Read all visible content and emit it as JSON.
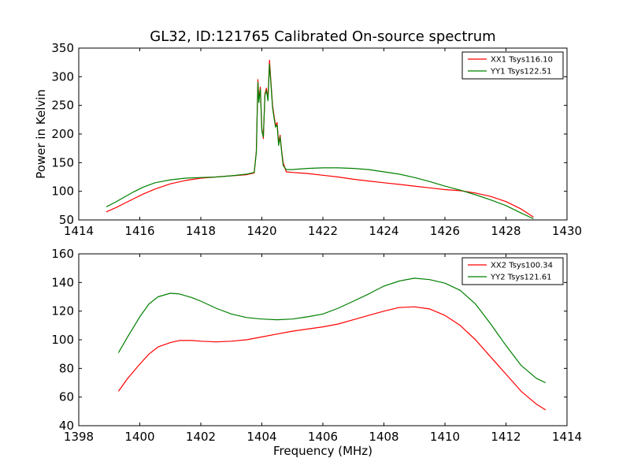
{
  "figure": {
    "title": "GL32, ID:121765 Calibrated On-source spectrum"
  },
  "chart_data": [
    {
      "type": "line",
      "title": "GL32, ID:121765 Calibrated On-source spectrum",
      "xlabel": "",
      "ylabel": "Power in Kelvin",
      "xlim": [
        1414,
        1430
      ],
      "ylim": [
        50,
        350
      ],
      "xticks": [
        1414,
        1416,
        1418,
        1420,
        1422,
        1424,
        1426,
        1428,
        1430
      ],
      "yticks": [
        50,
        100,
        150,
        200,
        250,
        300,
        350
      ],
      "grid": false,
      "legend": "top-right",
      "series": [
        {
          "name": "XX1 Tsys116.10",
          "color": "#ff0000",
          "x": [
            1414.9,
            1415.2,
            1415.5,
            1415.8,
            1416.1,
            1416.5,
            1417.0,
            1417.5,
            1418.0,
            1418.5,
            1419.0,
            1419.5,
            1419.75,
            1419.82,
            1419.87,
            1419.9,
            1419.95,
            1420.0,
            1420.05,
            1420.1,
            1420.15,
            1420.2,
            1420.25,
            1420.3,
            1420.35,
            1420.4,
            1420.45,
            1420.5,
            1420.55,
            1420.6,
            1420.65,
            1420.7,
            1420.8,
            1421.0,
            1421.5,
            1422.0,
            1422.5,
            1423.0,
            1423.5,
            1424.0,
            1424.5,
            1425.0,
            1425.5,
            1426.0,
            1426.5,
            1427.0,
            1427.5,
            1428.0,
            1428.5,
            1428.9
          ],
          "y": [
            64,
            71,
            79,
            87,
            95,
            104,
            113,
            119,
            123,
            125,
            127,
            129,
            132,
            170,
            295,
            260,
            282,
            210,
            192,
            270,
            280,
            262,
            329,
            290,
            250,
            232,
            215,
            220,
            185,
            198,
            170,
            150,
            134,
            133,
            131,
            128,
            125,
            121,
            118,
            115,
            112,
            109,
            106,
            103,
            101,
            97,
            91,
            82,
            69,
            55
          ]
        },
        {
          "name": "YY1 Tsys122.51",
          "color": "#008000",
          "x": [
            1414.9,
            1415.2,
            1415.5,
            1415.8,
            1416.1,
            1416.5,
            1417.0,
            1417.5,
            1418.0,
            1418.5,
            1419.0,
            1419.5,
            1419.75,
            1419.82,
            1419.87,
            1419.9,
            1419.95,
            1420.0,
            1420.05,
            1420.1,
            1420.15,
            1420.2,
            1420.25,
            1420.3,
            1420.35,
            1420.4,
            1420.45,
            1420.5,
            1420.55,
            1420.6,
            1420.65,
            1420.7,
            1420.8,
            1421.0,
            1421.5,
            1422.0,
            1422.5,
            1423.0,
            1423.5,
            1424.0,
            1424.5,
            1425.0,
            1425.5,
            1426.0,
            1426.5,
            1427.0,
            1427.5,
            1428.0,
            1428.5,
            1428.9
          ],
          "y": [
            73,
            81,
            90,
            99,
            107,
            115,
            120,
            123,
            124,
            125,
            127,
            130,
            133,
            168,
            290,
            255,
            278,
            205,
            195,
            268,
            276,
            258,
            322,
            286,
            246,
            228,
            212,
            216,
            180,
            195,
            168,
            145,
            138,
            138,
            140,
            141,
            141,
            140,
            138,
            134,
            130,
            124,
            117,
            109,
            102,
            94,
            85,
            75,
            62,
            52
          ]
        }
      ]
    },
    {
      "type": "line",
      "title": "",
      "xlabel": "Frequency (MHz)",
      "ylabel": "",
      "xlim": [
        1398,
        1414
      ],
      "ylim": [
        40,
        160
      ],
      "xticks": [
        1398,
        1400,
        1402,
        1404,
        1406,
        1408,
        1410,
        1412,
        1414
      ],
      "yticks": [
        40,
        60,
        80,
        100,
        120,
        140,
        160
      ],
      "grid": false,
      "legend": "top-right",
      "series": [
        {
          "name": "XX2 Tsys100.34",
          "color": "#ff0000",
          "x": [
            1399.3,
            1399.6,
            1400.0,
            1400.3,
            1400.6,
            1401.0,
            1401.3,
            1401.7,
            1402.0,
            1402.5,
            1403.0,
            1403.5,
            1404.0,
            1404.5,
            1405.0,
            1405.5,
            1406.0,
            1406.5,
            1407.0,
            1407.5,
            1408.0,
            1408.5,
            1409.0,
            1409.5,
            1410.0,
            1410.5,
            1411.0,
            1411.5,
            1412.0,
            1412.5,
            1413.0,
            1413.3
          ],
          "y": [
            64,
            73,
            83,
            90,
            95,
            98,
            99.5,
            99.5,
            99,
            98.5,
            99,
            100,
            102,
            104,
            106,
            107.5,
            109,
            111,
            114,
            117,
            120,
            122.5,
            123,
            121.5,
            117,
            110,
            100,
            88,
            76,
            64,
            55,
            51
          ]
        },
        {
          "name": "YY2 Tsys121.61",
          "color": "#008000",
          "x": [
            1399.3,
            1399.6,
            1400.0,
            1400.3,
            1400.6,
            1401.0,
            1401.3,
            1401.7,
            1402.0,
            1402.5,
            1403.0,
            1403.5,
            1404.0,
            1404.5,
            1405.0,
            1405.5,
            1406.0,
            1406.5,
            1407.0,
            1407.5,
            1408.0,
            1408.5,
            1409.0,
            1409.5,
            1410.0,
            1410.5,
            1411.0,
            1411.5,
            1412.0,
            1412.5,
            1413.0,
            1413.3
          ],
          "y": [
            91,
            102,
            116,
            125,
            130,
            132.5,
            132,
            129.5,
            127,
            122,
            118,
            115.5,
            114.5,
            114,
            114.5,
            116,
            118,
            122,
            127,
            132,
            137.5,
            141,
            143,
            142,
            139.5,
            134.5,
            125,
            111,
            96,
            82,
            73,
            70
          ]
        }
      ]
    }
  ]
}
